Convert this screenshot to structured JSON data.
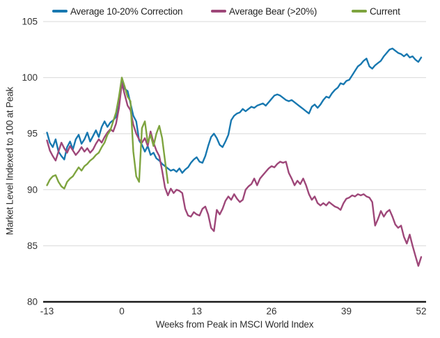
{
  "chart_data": {
    "type": "line",
    "title": "",
    "xlabel": "Weeks from Peak in MSCI World Index",
    "ylabel": "Market Level Indexed to 100 at Peak",
    "x_ticks": [
      -13,
      0,
      13,
      26,
      39,
      52
    ],
    "y_ticks": [
      80,
      85,
      90,
      95,
      100,
      105
    ],
    "xlim": [
      -13,
      52
    ],
    "ylim": [
      80,
      105
    ],
    "grid": "horizontal-only",
    "grid_color": "#d9d9d9",
    "axis_line_color": "#1a1a1a",
    "tick_label_color": "#333333",
    "legend_position": "top",
    "series": [
      {
        "name": "Average 10-20% Correction",
        "color": "#1878b0",
        "points": [
          [
            -13,
            95.1
          ],
          [
            -12.5,
            94.2
          ],
          [
            -12,
            93.8
          ],
          [
            -11.5,
            94.5
          ],
          [
            -11,
            93.4
          ],
          [
            -10.5,
            93
          ],
          [
            -10,
            92.7
          ],
          [
            -9.5,
            93.8
          ],
          [
            -9,
            94.3
          ],
          [
            -8.5,
            93.6
          ],
          [
            -8,
            94.5
          ],
          [
            -7.5,
            94.9
          ],
          [
            -7,
            94.1
          ],
          [
            -6.5,
            94.5
          ],
          [
            -6,
            95.1
          ],
          [
            -5.5,
            94.3
          ],
          [
            -5,
            94.8
          ],
          [
            -4.5,
            95.3
          ],
          [
            -4,
            94.7
          ],
          [
            -3.5,
            95.6
          ],
          [
            -3,
            96.1
          ],
          [
            -2.5,
            95.6
          ],
          [
            -2,
            96
          ],
          [
            -1.5,
            96.2
          ],
          [
            -1,
            96.5
          ],
          [
            -0.5,
            97.5
          ],
          [
            0,
            99.7
          ],
          [
            0.5,
            99
          ],
          [
            1,
            98.8
          ],
          [
            1.5,
            97.7
          ],
          [
            2,
            96.6
          ],
          [
            2.5,
            96.1
          ],
          [
            3,
            94.4
          ],
          [
            3.5,
            94
          ],
          [
            4,
            93.4
          ],
          [
            4.5,
            93.9
          ],
          [
            5,
            93.1
          ],
          [
            5.5,
            93.3
          ],
          [
            6,
            92.8
          ],
          [
            6.5,
            92.6
          ],
          [
            7,
            92.3
          ],
          [
            7.5,
            92.1
          ],
          [
            8,
            91.9
          ],
          [
            8.5,
            91.7
          ],
          [
            9,
            91.8
          ],
          [
            9.5,
            91.6
          ],
          [
            10,
            91.9
          ],
          [
            10.5,
            91.5
          ],
          [
            11,
            91.8
          ],
          [
            11.5,
            92
          ],
          [
            12,
            92.4
          ],
          [
            12.5,
            92.7
          ],
          [
            13,
            92.9
          ],
          [
            13.5,
            92.5
          ],
          [
            14,
            92.4
          ],
          [
            14.5,
            93
          ],
          [
            15,
            93.9
          ],
          [
            15.5,
            94.7
          ],
          [
            16,
            95
          ],
          [
            16.5,
            94.6
          ],
          [
            17,
            94
          ],
          [
            17.5,
            93.8
          ],
          [
            18,
            94.3
          ],
          [
            18.5,
            94.9
          ],
          [
            19,
            96.2
          ],
          [
            19.5,
            96.6
          ],
          [
            20,
            96.8
          ],
          [
            20.5,
            96.9
          ],
          [
            21,
            97.2
          ],
          [
            21.5,
            97
          ],
          [
            22,
            97.2
          ],
          [
            22.5,
            97.4
          ],
          [
            23,
            97.3
          ],
          [
            23.5,
            97.5
          ],
          [
            24,
            97.6
          ],
          [
            24.5,
            97.7
          ],
          [
            25,
            97.5
          ],
          [
            25.5,
            97.8
          ],
          [
            26,
            98.1
          ],
          [
            26.5,
            98.4
          ],
          [
            27,
            98.5
          ],
          [
            27.5,
            98.4
          ],
          [
            28,
            98.2
          ],
          [
            28.5,
            98
          ],
          [
            29,
            97.9
          ],
          [
            29.5,
            98
          ],
          [
            30,
            97.8
          ],
          [
            30.5,
            97.6
          ],
          [
            31,
            97.4
          ],
          [
            31.5,
            97.2
          ],
          [
            32,
            97
          ],
          [
            32.5,
            96.8
          ],
          [
            33,
            97.4
          ],
          [
            33.5,
            97.6
          ],
          [
            34,
            97.3
          ],
          [
            34.5,
            97.6
          ],
          [
            35,
            98
          ],
          [
            35.5,
            98.3
          ],
          [
            36,
            98.2
          ],
          [
            36.5,
            98.6
          ],
          [
            37,
            98.9
          ],
          [
            37.5,
            99.1
          ],
          [
            38,
            99.5
          ],
          [
            38.5,
            99.4
          ],
          [
            39,
            99.7
          ],
          [
            39.5,
            99.8
          ],
          [
            40,
            100.2
          ],
          [
            40.5,
            100.6
          ],
          [
            41,
            101
          ],
          [
            41.5,
            101.2
          ],
          [
            42,
            101.5
          ],
          [
            42.5,
            101.7
          ],
          [
            43,
            101
          ],
          [
            43.5,
            100.8
          ],
          [
            44,
            101.1
          ],
          [
            44.5,
            101.3
          ],
          [
            45,
            101.5
          ],
          [
            45.5,
            101.9
          ],
          [
            46,
            102.2
          ],
          [
            46.5,
            102.5
          ],
          [
            47,
            102.6
          ],
          [
            47.5,
            102.4
          ],
          [
            48,
            102.2
          ],
          [
            48.5,
            102.1
          ],
          [
            49,
            101.9
          ],
          [
            49.5,
            102.1
          ],
          [
            50,
            101.8
          ],
          [
            50.5,
            101.9
          ],
          [
            51,
            101.6
          ],
          [
            51.5,
            101.4
          ],
          [
            52,
            101.8
          ]
        ]
      },
      {
        "name": "Average Bear (>20%)",
        "color": "#9e4779",
        "points": [
          [
            -13,
            94.4
          ],
          [
            -12.5,
            93.5
          ],
          [
            -12,
            93
          ],
          [
            -11.5,
            92.6
          ],
          [
            -11,
            93.4
          ],
          [
            -10.5,
            94.2
          ],
          [
            -10,
            93.7
          ],
          [
            -9.5,
            93.3
          ],
          [
            -9,
            93.9
          ],
          [
            -8.5,
            93.5
          ],
          [
            -8,
            93.1
          ],
          [
            -7.5,
            93.4
          ],
          [
            -7,
            93.8
          ],
          [
            -6.5,
            93.4
          ],
          [
            -6,
            93.7
          ],
          [
            -5.5,
            93.3
          ],
          [
            -5,
            93.6
          ],
          [
            -4.5,
            94.1
          ],
          [
            -4,
            94.5
          ],
          [
            -3.5,
            94.2
          ],
          [
            -3,
            94.7
          ],
          [
            -2.5,
            95.1
          ],
          [
            -2,
            95.4
          ],
          [
            -1.5,
            95.2
          ],
          [
            -1,
            95.9
          ],
          [
            -0.5,
            97.3
          ],
          [
            0,
            99.5
          ],
          [
            0.5,
            98.5
          ],
          [
            1,
            97.5
          ],
          [
            1.5,
            97.1
          ],
          [
            2,
            95.8
          ],
          [
            2.5,
            95
          ],
          [
            3,
            94.5
          ],
          [
            3.5,
            94.2
          ],
          [
            4,
            94.6
          ],
          [
            4.5,
            93.9
          ],
          [
            5,
            95.2
          ],
          [
            5.5,
            94.2
          ],
          [
            6,
            93.5
          ],
          [
            6.5,
            93
          ],
          [
            7,
            91.7
          ],
          [
            7.5,
            90.2
          ],
          [
            8,
            89.5
          ],
          [
            8.5,
            90.1
          ],
          [
            9,
            89.7
          ],
          [
            9.5,
            90
          ],
          [
            10,
            89.9
          ],
          [
            10.5,
            89.7
          ],
          [
            11,
            88.3
          ],
          [
            11.5,
            87.7
          ],
          [
            12,
            87.6
          ],
          [
            12.5,
            88
          ],
          [
            13,
            87.8
          ],
          [
            13.5,
            87.7
          ],
          [
            14,
            88.3
          ],
          [
            14.5,
            88.5
          ],
          [
            15,
            87.8
          ],
          [
            15.5,
            86.6
          ],
          [
            16,
            86.3
          ],
          [
            16.5,
            88.2
          ],
          [
            17,
            87.8
          ],
          [
            17.5,
            88.3
          ],
          [
            18,
            89
          ],
          [
            18.5,
            89.4
          ],
          [
            19,
            89.1
          ],
          [
            19.5,
            89.6
          ],
          [
            20,
            89.2
          ],
          [
            20.5,
            88.9
          ],
          [
            21,
            89.1
          ],
          [
            21.5,
            90
          ],
          [
            22,
            90.3
          ],
          [
            22.5,
            90.5
          ],
          [
            23,
            91
          ],
          [
            23.5,
            90.4
          ],
          [
            24,
            91
          ],
          [
            24.5,
            91.3
          ],
          [
            25,
            91.6
          ],
          [
            25.5,
            91.9
          ],
          [
            26,
            92.1
          ],
          [
            26.5,
            92
          ],
          [
            27,
            92.3
          ],
          [
            27.5,
            92.5
          ],
          [
            28,
            92.4
          ],
          [
            28.5,
            92.5
          ],
          [
            29,
            91.5
          ],
          [
            29.5,
            91
          ],
          [
            30,
            90.4
          ],
          [
            30.5,
            90.8
          ],
          [
            31,
            90.5
          ],
          [
            31.5,
            91
          ],
          [
            32,
            90.4
          ],
          [
            32.5,
            89.6
          ],
          [
            33,
            89.1
          ],
          [
            33.5,
            89.4
          ],
          [
            34,
            88.8
          ],
          [
            34.5,
            88.6
          ],
          [
            35,
            88.8
          ],
          [
            35.5,
            88.6
          ],
          [
            36,
            88.9
          ],
          [
            36.5,
            88.7
          ],
          [
            37,
            88.5
          ],
          [
            37.5,
            88.4
          ],
          [
            38,
            88.2
          ],
          [
            38.5,
            88.8
          ],
          [
            39,
            89.2
          ],
          [
            39.5,
            89.3
          ],
          [
            40,
            89.5
          ],
          [
            40.5,
            89.4
          ],
          [
            41,
            89.6
          ],
          [
            41.5,
            89.5
          ],
          [
            42,
            89.6
          ],
          [
            42.5,
            89.4
          ],
          [
            43,
            89.3
          ],
          [
            43.5,
            88.9
          ],
          [
            44,
            86.8
          ],
          [
            44.5,
            87.4
          ],
          [
            45,
            88.1
          ],
          [
            45.5,
            87.6
          ],
          [
            46,
            88
          ],
          [
            46.5,
            88.2
          ],
          [
            47,
            87.6
          ],
          [
            47.5,
            86.9
          ],
          [
            48,
            86.6
          ],
          [
            48.5,
            86.8
          ],
          [
            49,
            85.8
          ],
          [
            49.5,
            85.2
          ],
          [
            50,
            86
          ],
          [
            50.5,
            85
          ],
          [
            51,
            84.1
          ],
          [
            51.5,
            83.2
          ],
          [
            52,
            84
          ]
        ]
      },
      {
        "name": "Current",
        "color": "#7ea43f",
        "points": [
          [
            -13,
            90.4
          ],
          [
            -12.5,
            90.9
          ],
          [
            -12,
            91.2
          ],
          [
            -11.5,
            91.3
          ],
          [
            -11,
            90.7
          ],
          [
            -10.5,
            90.3
          ],
          [
            -10,
            90.1
          ],
          [
            -9.5,
            90.7
          ],
          [
            -9,
            91
          ],
          [
            -8.5,
            91.2
          ],
          [
            -8,
            91.6
          ],
          [
            -7.5,
            92
          ],
          [
            -7,
            91.7
          ],
          [
            -6.5,
            92.1
          ],
          [
            -6,
            92.3
          ],
          [
            -5.5,
            92.6
          ],
          [
            -5,
            92.8
          ],
          [
            -4.5,
            93.1
          ],
          [
            -4,
            93.3
          ],
          [
            -3.5,
            93.8
          ],
          [
            -3,
            94.2
          ],
          [
            -2.5,
            94.9
          ],
          [
            -2,
            95.3
          ],
          [
            -1.5,
            96.1
          ],
          [
            -1,
            96.9
          ],
          [
            -0.5,
            98.3
          ],
          [
            0,
            100
          ],
          [
            0.5,
            99.2
          ],
          [
            1,
            98.3
          ],
          [
            1.5,
            97.9
          ],
          [
            2,
            93.4
          ],
          [
            2.5,
            91.2
          ],
          [
            3,
            90.7
          ],
          [
            3.5,
            95.5
          ],
          [
            4,
            96.1
          ],
          [
            4.5,
            94.2
          ],
          [
            5,
            94.9
          ],
          [
            5.5,
            93.9
          ],
          [
            6,
            95
          ],
          [
            6.5,
            95.7
          ],
          [
            7,
            94.6
          ],
          [
            7.5,
            92.6
          ],
          [
            8,
            90.6
          ]
        ]
      }
    ]
  }
}
